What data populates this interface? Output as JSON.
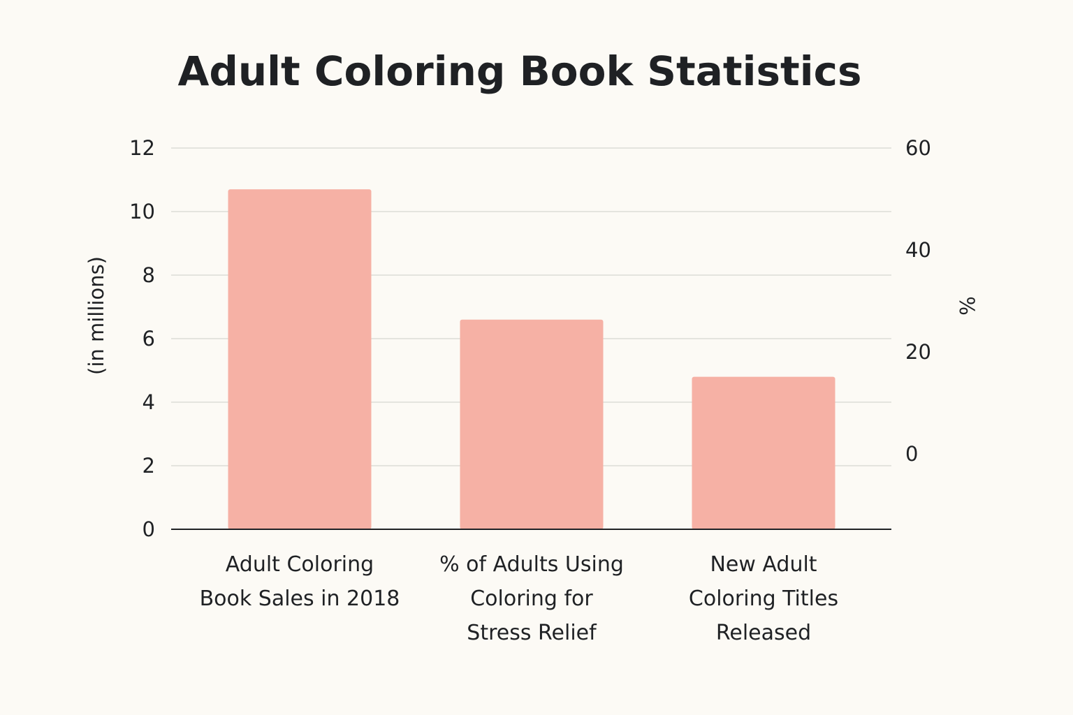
{
  "chart_data": {
    "type": "bar",
    "title": "Adult Coloring Book Statistics",
    "categories": [
      [
        "Adult Coloring",
        "Book Sales in 2018"
      ],
      [
        "% of Adults Using",
        "Coloring for",
        "Stress Relief"
      ],
      [
        "New Adult",
        "Coloring Titles",
        "Released"
      ]
    ],
    "values": [
      10.7,
      6.6,
      4.8
    ],
    "ylabel": "(in millions)",
    "ylim": [
      0,
      12
    ],
    "yticks": [
      0,
      2,
      4,
      6,
      8,
      10,
      12
    ],
    "y2label": "%",
    "y2ticks": [
      0,
      20,
      40,
      60
    ],
    "grid": true,
    "bar_color": "#f6b1a5",
    "legend": "none"
  }
}
